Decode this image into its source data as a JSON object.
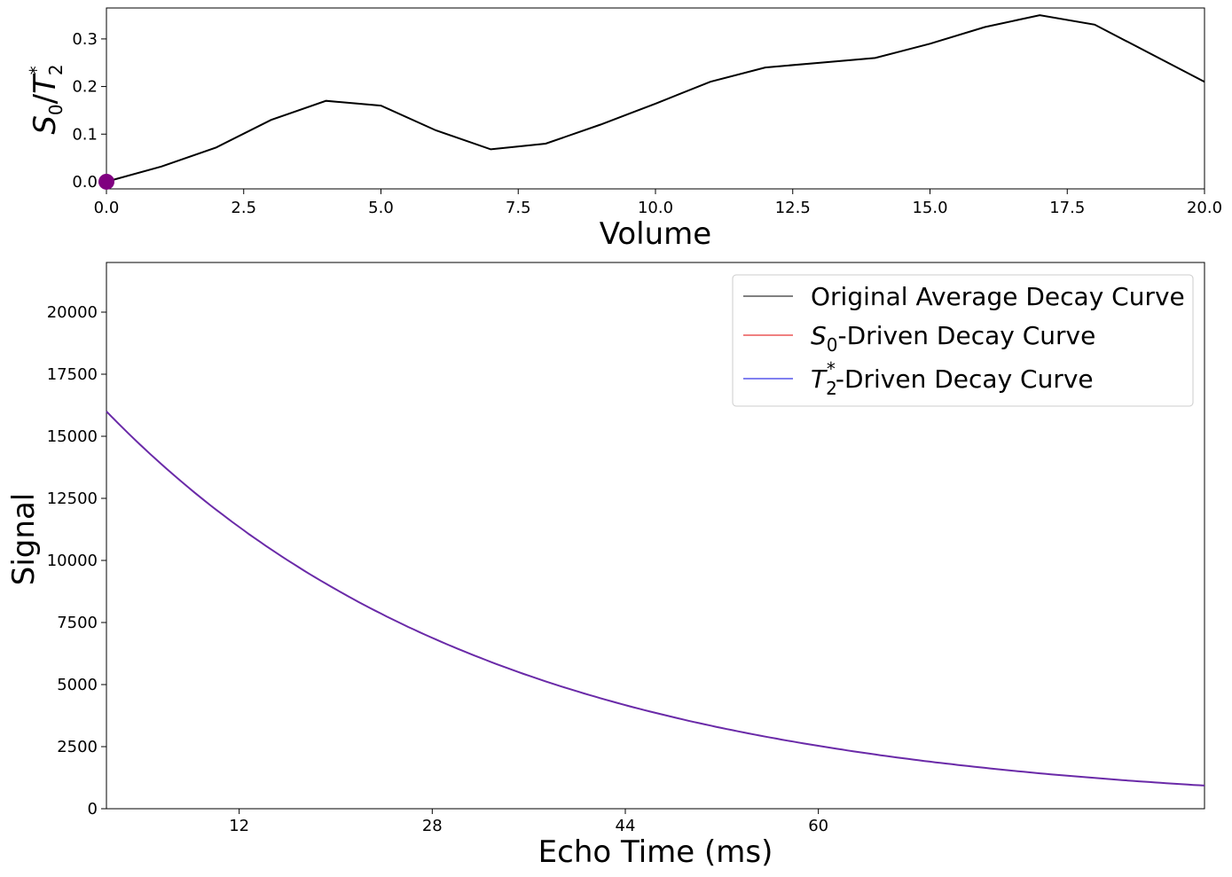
{
  "chart_data": [
    {
      "type": "line",
      "xlabel": "Volume",
      "ylabel": "S0/T2*",
      "xlim": [
        0,
        20
      ],
      "ylim": [
        -0.015,
        0.365
      ],
      "xticks": [
        "0.0",
        "2.5",
        "5.0",
        "7.5",
        "10.0",
        "12.5",
        "15.0",
        "17.5",
        "20.0"
      ],
      "xtick_values": [
        0,
        2.5,
        5,
        7.5,
        10,
        12.5,
        15,
        17.5,
        20
      ],
      "yticks": [
        "0.0",
        "0.1",
        "0.2",
        "0.3"
      ],
      "ytick_values": [
        0,
        0.1,
        0.2,
        0.3
      ],
      "series": [
        {
          "color": "#000000",
          "x": [
            0,
            1,
            2,
            3,
            4,
            5,
            6,
            7,
            8,
            9,
            10,
            11,
            12,
            13,
            14,
            15,
            16,
            17,
            18,
            19,
            20
          ],
          "y": [
            0.0,
            0.032,
            0.072,
            0.13,
            0.17,
            0.16,
            0.108,
            0.068,
            0.08,
            0.12,
            0.164,
            0.21,
            0.24,
            0.25,
            0.26,
            0.29,
            0.325,
            0.35,
            0.33,
            0.27,
            0.21
          ]
        }
      ],
      "marker": {
        "x": 0,
        "y": 0.0,
        "color": "#800080"
      },
      "grid": false
    },
    {
      "type": "line",
      "xlabel": "Echo Time (ms)",
      "ylabel": "Signal",
      "xlim": [
        1,
        92
      ],
      "ylim": [
        0,
        22000
      ],
      "xticks": [
        "12",
        "28",
        "44",
        "60"
      ],
      "xtick_values": [
        12,
        28,
        44,
        60
      ],
      "yticks": [
        "0",
        "2500",
        "5000",
        "7500",
        "10000",
        "12500",
        "15000",
        "17500",
        "20000"
      ],
      "ytick_values": [
        0,
        2500,
        5000,
        7500,
        10000,
        12500,
        15000,
        17500,
        20000
      ],
      "decay": {
        "S0": 16000,
        "T2star": 32,
        "tmin": 1,
        "tmax": 92
      },
      "legend": {
        "placement": "top-right",
        "entries": [
          {
            "label": "Original Average Decay Curve",
            "color": "#808080"
          },
          {
            "label": "-Driven Decay Curve",
            "math": "S0",
            "color": "#f08080"
          },
          {
            "label": "-Driven Decay Curve",
            "math": "T2*",
            "color": "#8080f0"
          }
        ]
      },
      "curve_color": "#6a2aa8",
      "grid": false
    }
  ]
}
